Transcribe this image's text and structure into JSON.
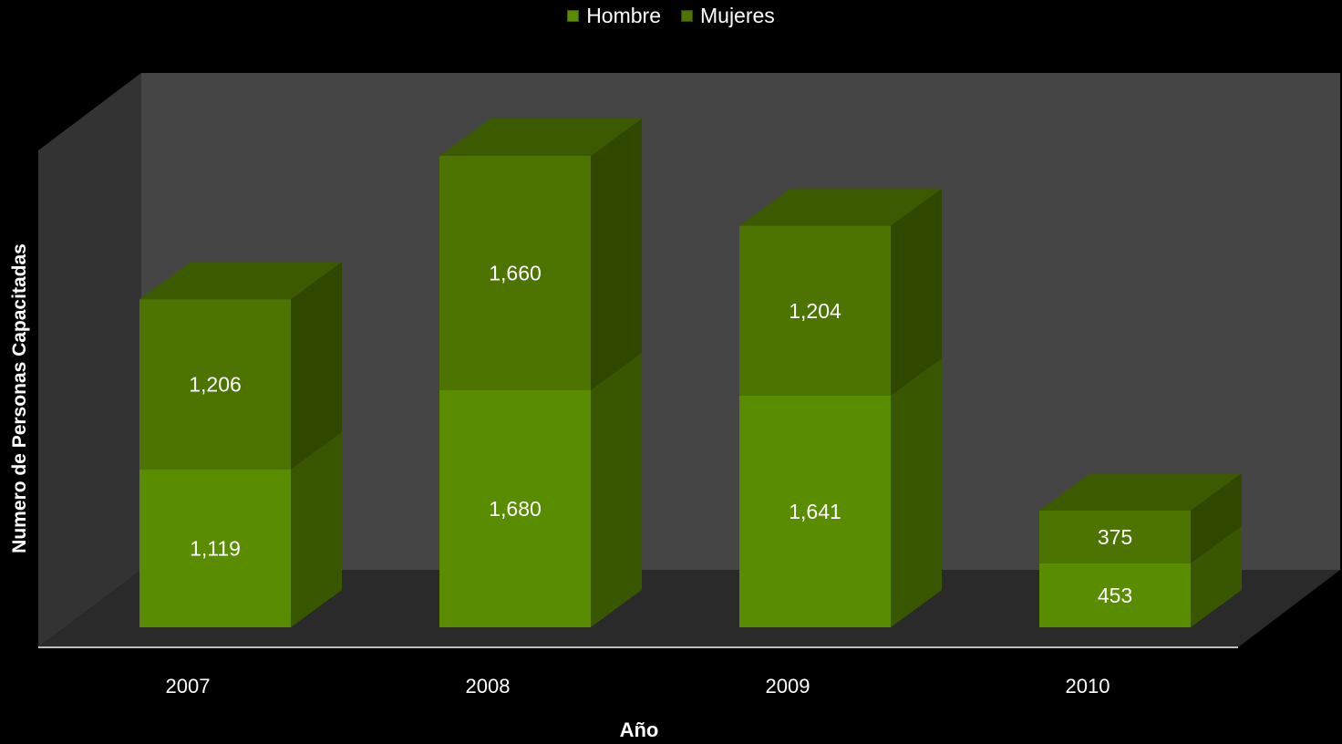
{
  "chart_data": {
    "type": "bar",
    "stacked": true,
    "style": "3d",
    "categories": [
      "2007",
      "2008",
      "2009",
      "2010"
    ],
    "series": [
      {
        "name": "Hombre",
        "values": [
          1119,
          1680,
          1641,
          453
        ],
        "value_labels": [
          "1,119",
          "1,680",
          "1,641",
          "453"
        ],
        "color": "#5a8c00"
      },
      {
        "name": "Mujeres",
        "values": [
          1206,
          1660,
          1204,
          375
        ],
        "value_labels": [
          "1,206",
          "1,660",
          "1,204",
          "375"
        ],
        "color": "#4d7300"
      }
    ],
    "xlabel": "Año",
    "ylabel": "Numero de Personas Capacitadas",
    "legend": "top-center",
    "grid": false,
    "background": "#000000",
    "wall_color": "#454545",
    "floor_color": "#2a2a2a",
    "label_color": "#ffffff"
  }
}
